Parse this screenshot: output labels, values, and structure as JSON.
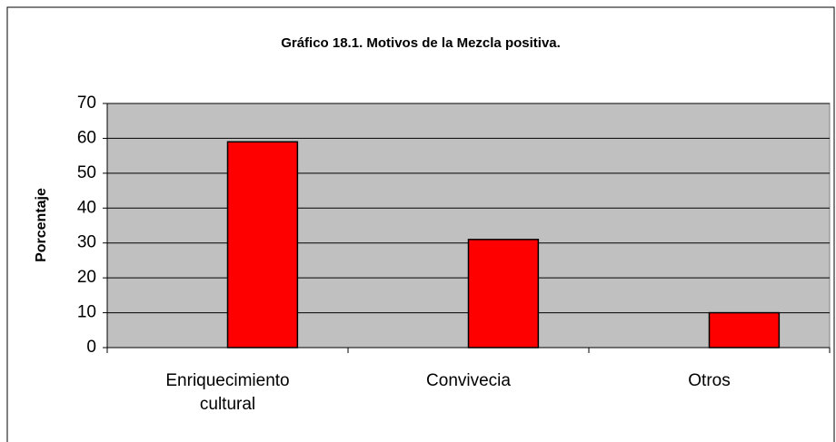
{
  "chart_data": {
    "type": "bar",
    "title": "Gráfico 18.1. Motivos de la Mezcla positiva.",
    "y_label": "Porcentaje",
    "categories": [
      "Enriquecimiento cultural",
      "Convivecia",
      "Otros"
    ],
    "values": [
      59,
      31,
      10
    ],
    "color": "#ff0000",
    "ylim": [
      0,
      70
    ],
    "yticks": [
      0,
      10,
      20,
      30,
      40,
      50,
      60,
      70
    ],
    "grid": true
  }
}
